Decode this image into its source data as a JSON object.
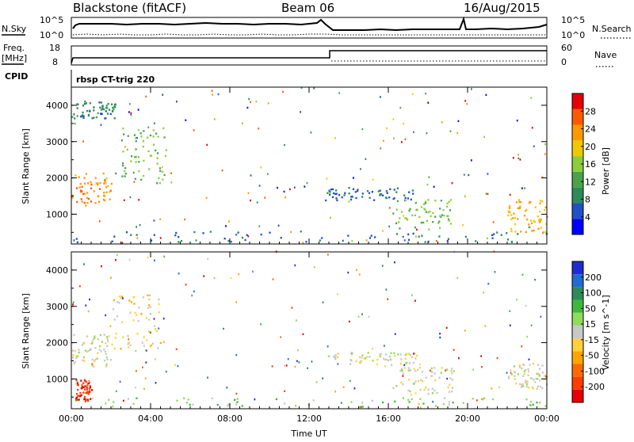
{
  "header": {
    "station": "Blackstone (fitACF)",
    "beam": "Beam 06",
    "date": "16/Aug/2015"
  },
  "top_panels": {
    "nsky_label": "N.Sky",
    "nsky_ticks": [
      "10^5",
      "10^0"
    ],
    "nsearch_label": "N.Search",
    "nsearch_ticks": [
      "10^5",
      "10^0"
    ],
    "freq_label_1": "Freq.",
    "freq_label_2": "[MHz]",
    "freq_ticks": [
      "18",
      "8"
    ],
    "nave_label": "Nave",
    "nave_ticks": [
      "60",
      "0"
    ],
    "cpid_label": "CPID",
    "cpid_text": "rbsp CT-trig 220"
  },
  "colors": {
    "power_scale": [
      "#0000ff",
      "#2050c8",
      "#2e8b57",
      "#4aa34a",
      "#8ccd3c",
      "#f0c800",
      "#ff9900",
      "#ff5a00",
      "#e60000"
    ],
    "velocity_scale": [
      "#1f2ad2",
      "#206cd0",
      "#2e8b57",
      "#3cb93c",
      "#8fdc5a",
      "#c8c8c8",
      "#ffd23c",
      "#ffa500",
      "#ff6a00",
      "#ff3c00",
      "#e60000"
    ]
  },
  "chart_data": [
    {
      "type": "heatmap",
      "parameter": "Power",
      "xlabel": "Time UT",
      "ylabel": "Slant Range [km]",
      "x_ticks": [
        "00:00",
        "04:00",
        "08:00",
        "12:00",
        "16:00",
        "20:00",
        "00:00"
      ],
      "y_ticks": [
        "1000",
        "2000",
        "3000",
        "4000"
      ],
      "xlim_hours": [
        0,
        24
      ],
      "ylim_km": [
        180,
        4500
      ],
      "colorbar_label": "Power [dB]",
      "colorbar_ticks": [
        "4",
        "8",
        "12",
        "16",
        "20",
        "24",
        "28"
      ],
      "zlim": [
        0,
        30
      ],
      "features": [
        {
          "t_start": 0.0,
          "t_end": 2.0,
          "r_low": 1200,
          "r_high": 2100,
          "value": 22
        },
        {
          "t_start": 0.0,
          "t_end": 2.2,
          "r_low": 3600,
          "r_high": 4100,
          "value": 8
        },
        {
          "t_start": 2.5,
          "t_end": 4.8,
          "r_low": 1800,
          "r_high": 3400,
          "value": 14
        },
        {
          "t_start": 0.0,
          "t_end": 24.0,
          "r_low": 200,
          "r_high": 500,
          "value": 6
        },
        {
          "t_start": 12.8,
          "t_end": 17.5,
          "r_low": 1350,
          "r_high": 1700,
          "value": 6
        },
        {
          "t_start": 16.2,
          "t_end": 19.2,
          "r_low": 550,
          "r_high": 1400,
          "value": 14
        },
        {
          "t_start": 22.0,
          "t_end": 24.0,
          "r_low": 450,
          "r_high": 1400,
          "value": 20
        }
      ]
    },
    {
      "type": "heatmap",
      "parameter": "Velocity",
      "xlabel": "Time UT",
      "ylabel": "Slant Range [km]",
      "x_ticks": [
        "00:00",
        "04:00",
        "08:00",
        "12:00",
        "16:00",
        "20:00",
        "00:00"
      ],
      "y_ticks": [
        "1000",
        "2000",
        "3000",
        "4000"
      ],
      "xlim_hours": [
        0,
        24
      ],
      "ylim_km": [
        180,
        4500
      ],
      "colorbar_label": "Velocity [m s^-1]",
      "colorbar_ticks": [
        "200",
        "100",
        "50",
        "15",
        "-15",
        "-50",
        "-100",
        "-200"
      ],
      "zlim": [
        -250,
        250
      ],
      "features": [
        {
          "t_start": 0.0,
          "t_end": 2.0,
          "r_low": 1300,
          "r_high": 2200,
          "value": 0
        },
        {
          "t_start": 0.2,
          "t_end": 1.0,
          "r_low": 350,
          "r_high": 950,
          "value": -200
        },
        {
          "t_start": 2.0,
          "t_end": 4.5,
          "r_low": 1800,
          "r_high": 3300,
          "value": -40
        },
        {
          "t_start": 0.0,
          "t_end": 24.0,
          "r_low": 200,
          "r_high": 450,
          "value": 40
        },
        {
          "t_start": 12.8,
          "t_end": 17.5,
          "r_low": 1350,
          "r_high": 1700,
          "value": 0
        },
        {
          "t_start": 16.2,
          "t_end": 19.3,
          "r_low": 550,
          "r_high": 1300,
          "value": 0
        },
        {
          "t_start": 22.0,
          "t_end": 24.0,
          "r_low": 700,
          "r_high": 1400,
          "value": 0
        }
      ]
    }
  ]
}
